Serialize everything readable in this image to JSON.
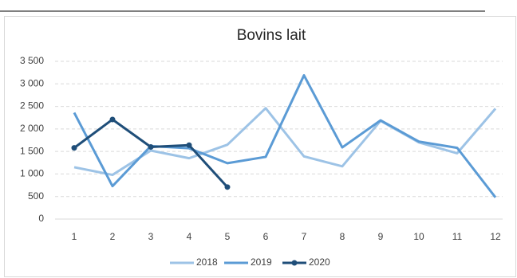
{
  "chart_data": {
    "type": "line",
    "title": "Bovins lait",
    "categories": [
      "1",
      "2",
      "3",
      "4",
      "5",
      "6",
      "7",
      "8",
      "9",
      "10",
      "11",
      "12"
    ],
    "series": [
      {
        "name": "2018",
        "color": "#9dc3e6",
        "marker": false,
        "values": [
          1150,
          980,
          1520,
          1350,
          1650,
          2460,
          1390,
          1170,
          2180,
          1700,
          1460,
          2450
        ]
      },
      {
        "name": "2019",
        "color": "#5b9bd5",
        "marker": false,
        "values": [
          2360,
          730,
          1620,
          1570,
          1240,
          1380,
          3190,
          1590,
          2190,
          1720,
          1580,
          480
        ]
      },
      {
        "name": "2020",
        "color": "#1f4e79",
        "marker": true,
        "values": [
          1580,
          2210,
          1600,
          1640,
          710,
          null,
          null,
          null,
          null,
          null,
          null,
          null
        ]
      }
    ],
    "ylim": [
      0,
      3500
    ],
    "yticks": [
      0,
      500,
      {
        "value": 1000,
        "label": "1 000"
      },
      {
        "value": 1500,
        "label": "1 500"
      },
      {
        "value": 2000,
        "label": "2 000"
      },
      {
        "value": 2500,
        "label": "2 500"
      },
      {
        "value": 3000,
        "label": "3 000"
      },
      {
        "value": 3500,
        "label": "3 500"
      }
    ],
    "grid": true,
    "legend": "bottom"
  }
}
